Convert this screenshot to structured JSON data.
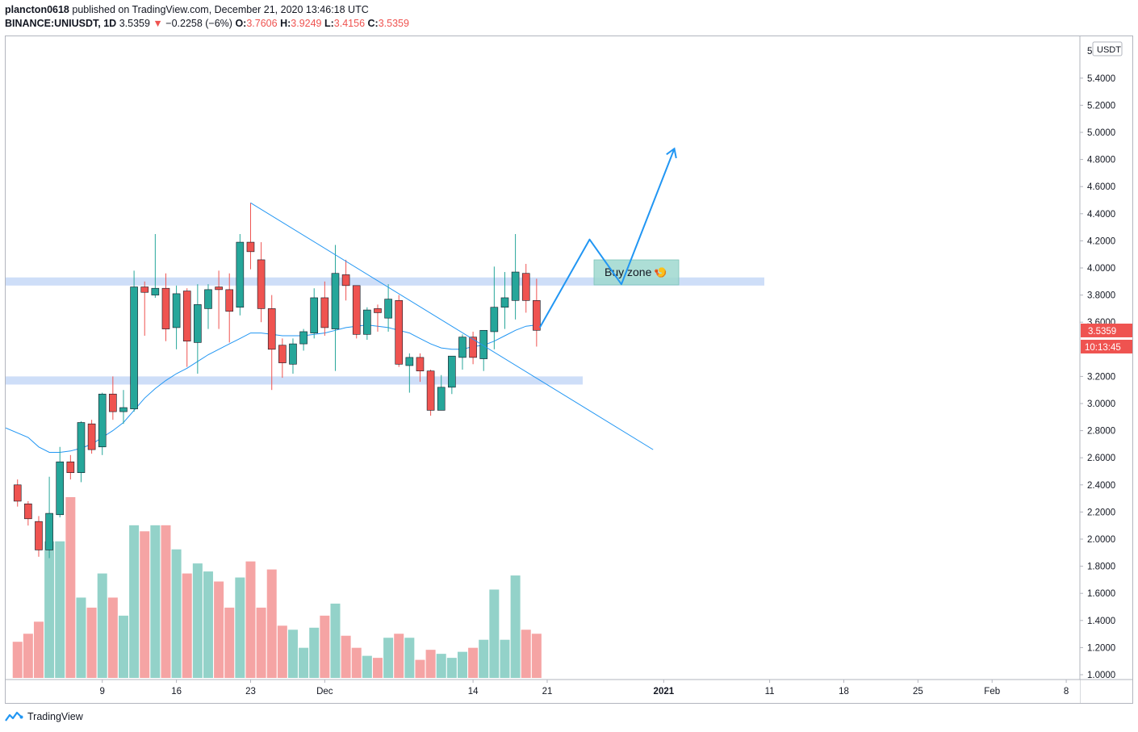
{
  "header": {
    "publisher": "plancton0618",
    "published_text": "published on TradingView.com, December 21, 2020 13:46:18 UTC",
    "symbol": "BINANCE:UNIUSDT, 1D",
    "last": "3.5359",
    "change_arrow": "▼",
    "change": "−0.2258 (−6%)",
    "o_label": "O:",
    "o_value": "3.7606",
    "h_label": "H:",
    "h_value": "3.9249",
    "l_label": "L:",
    "l_value": "3.4156",
    "c_label": "C:",
    "c_value": "3.5359"
  },
  "footer": {
    "brand": "TradingView",
    "logo_icon": "tradingview-logo-icon"
  },
  "colors": {
    "up": "#26a69a",
    "down": "#ef5350",
    "vol_up": "#93d2c9",
    "vol_down": "#f5a4a4",
    "ma": "#2196f3",
    "zone": "#c6d8f7",
    "arrow": "#2196f3",
    "price_tag": "#ef5350"
  },
  "chart_data": {
    "type": "candlestick",
    "currency": "USDT",
    "y_ticks": [
      "5.4000",
      "5.2000",
      "5.0000",
      "4.8000",
      "4.6000",
      "4.4000",
      "4.2000",
      "4.0000",
      "3.8000",
      "3.6000",
      "3.2000",
      "3.0000",
      "2.8000",
      "2.6000",
      "2.4000",
      "2.2000",
      "2.0000",
      "1.8000",
      "1.6000",
      "1.4000",
      "1.2000",
      "1.0000"
    ],
    "y_top_partial": "5",
    "ylim": [
      0.9,
      5.6
    ],
    "x_labels": [
      {
        "label": "9",
        "day": 9
      },
      {
        "label": "16",
        "day": 16
      },
      {
        "label": "23",
        "day": 23
      },
      {
        "label": "Dec",
        "day": 30
      },
      {
        "label": "14",
        "day": 44
      },
      {
        "label": "21",
        "day": 51
      },
      {
        "label": "2021",
        "day": 62,
        "bold": true
      },
      {
        "label": "11",
        "day": 72
      },
      {
        "label": "18",
        "day": 79
      },
      {
        "label": "25",
        "day": 86
      },
      {
        "label": "Feb",
        "day": 93
      },
      {
        "label": "8",
        "day": 100
      }
    ],
    "x_axis_note": "day 0 = Nov 1, 2020",
    "candles": [
      {
        "day": 1,
        "o": 2.4,
        "h": 2.44,
        "l": 2.24,
        "c": 2.28
      },
      {
        "day": 2,
        "o": 2.26,
        "h": 2.28,
        "l": 2.1,
        "c": 2.15
      },
      {
        "day": 3,
        "o": 2.13,
        "h": 2.17,
        "l": 1.87,
        "c": 1.92
      },
      {
        "day": 4,
        "o": 1.92,
        "h": 2.46,
        "l": 1.86,
        "c": 2.19
      },
      {
        "day": 5,
        "o": 2.18,
        "h": 2.68,
        "l": 2.16,
        "c": 2.57
      },
      {
        "day": 6,
        "o": 2.57,
        "h": 2.62,
        "l": 2.44,
        "c": 2.49
      },
      {
        "day": 7,
        "o": 2.49,
        "h": 2.87,
        "l": 2.42,
        "c": 2.86
      },
      {
        "day": 8,
        "o": 2.85,
        "h": 2.88,
        "l": 2.63,
        "c": 2.66
      },
      {
        "day": 9,
        "o": 2.68,
        "h": 3.08,
        "l": 2.62,
        "c": 3.07
      },
      {
        "day": 10,
        "o": 3.07,
        "h": 3.2,
        "l": 2.88,
        "c": 2.94
      },
      {
        "day": 11,
        "o": 2.94,
        "h": 3.1,
        "l": 2.85,
        "c": 2.97
      },
      {
        "day": 12,
        "o": 2.96,
        "h": 3.98,
        "l": 2.94,
        "c": 3.86
      },
      {
        "day": 13,
        "o": 3.86,
        "h": 3.9,
        "l": 3.5,
        "c": 3.82
      },
      {
        "day": 14,
        "o": 3.8,
        "h": 4.25,
        "l": 3.78,
        "c": 3.85
      },
      {
        "day": 15,
        "o": 3.85,
        "h": 3.96,
        "l": 3.46,
        "c": 3.55
      },
      {
        "day": 16,
        "o": 3.56,
        "h": 3.87,
        "l": 3.4,
        "c": 3.81
      },
      {
        "day": 17,
        "o": 3.83,
        "h": 3.85,
        "l": 3.27,
        "c": 3.46
      },
      {
        "day": 18,
        "o": 3.45,
        "h": 3.88,
        "l": 3.22,
        "c": 3.73
      },
      {
        "day": 19,
        "o": 3.7,
        "h": 3.88,
        "l": 3.55,
        "c": 3.84
      },
      {
        "day": 20,
        "o": 3.86,
        "h": 3.98,
        "l": 3.55,
        "c": 3.84
      },
      {
        "day": 21,
        "o": 3.84,
        "h": 3.96,
        "l": 3.45,
        "c": 3.68
      },
      {
        "day": 22,
        "o": 3.71,
        "h": 4.25,
        "l": 3.65,
        "c": 4.19
      },
      {
        "day": 23,
        "o": 4.19,
        "h": 4.48,
        "l": 3.99,
        "c": 4.12
      },
      {
        "day": 24,
        "o": 4.06,
        "h": 4.19,
        "l": 3.6,
        "c": 3.7
      },
      {
        "day": 25,
        "o": 3.7,
        "h": 3.8,
        "l": 3.1,
        "c": 3.4
      },
      {
        "day": 26,
        "o": 3.43,
        "h": 3.48,
        "l": 3.19,
        "c": 3.3
      },
      {
        "day": 27,
        "o": 3.29,
        "h": 3.48,
        "l": 3.22,
        "c": 3.44
      },
      {
        "day": 28,
        "o": 3.44,
        "h": 3.55,
        "l": 3.39,
        "c": 3.53
      },
      {
        "day": 29,
        "o": 3.52,
        "h": 3.85,
        "l": 3.48,
        "c": 3.78
      },
      {
        "day": 30,
        "o": 3.78,
        "h": 3.9,
        "l": 3.5,
        "c": 3.56
      },
      {
        "day": 31,
        "o": 3.55,
        "h": 4.17,
        "l": 3.24,
        "c": 3.96
      },
      {
        "day": 32,
        "o": 3.95,
        "h": 4.06,
        "l": 3.76,
        "c": 3.87
      },
      {
        "day": 33,
        "o": 3.87,
        "h": 3.87,
        "l": 3.48,
        "c": 3.51
      },
      {
        "day": 34,
        "o": 3.51,
        "h": 3.71,
        "l": 3.47,
        "c": 3.69
      },
      {
        "day": 35,
        "o": 3.7,
        "h": 3.73,
        "l": 3.53,
        "c": 3.67
      },
      {
        "day": 36,
        "o": 3.63,
        "h": 3.88,
        "l": 3.53,
        "c": 3.77
      },
      {
        "day": 37,
        "o": 3.76,
        "h": 3.8,
        "l": 3.27,
        "c": 3.29
      },
      {
        "day": 38,
        "o": 3.28,
        "h": 3.37,
        "l": 3.08,
        "c": 3.34
      },
      {
        "day": 39,
        "o": 3.34,
        "h": 3.37,
        "l": 3.16,
        "c": 3.24
      },
      {
        "day": 40,
        "o": 3.24,
        "h": 3.25,
        "l": 2.91,
        "c": 2.95
      },
      {
        "day": 41,
        "o": 2.95,
        "h": 3.21,
        "l": 2.95,
        "c": 3.12
      },
      {
        "day": 42,
        "o": 3.12,
        "h": 3.35,
        "l": 3.07,
        "c": 3.35
      },
      {
        "day": 43,
        "o": 3.34,
        "h": 3.51,
        "l": 3.25,
        "c": 3.49
      },
      {
        "day": 44,
        "o": 3.49,
        "h": 3.53,
        "l": 3.29,
        "c": 3.34
      },
      {
        "day": 45,
        "o": 3.33,
        "h": 3.51,
        "l": 3.24,
        "c": 3.54
      },
      {
        "day": 46,
        "o": 3.53,
        "h": 4.01,
        "l": 3.4,
        "c": 3.71
      },
      {
        "day": 47,
        "o": 3.71,
        "h": 3.97,
        "l": 3.55,
        "c": 3.78
      },
      {
        "day": 48,
        "o": 3.76,
        "h": 4.25,
        "l": 3.62,
        "c": 3.97
      },
      {
        "day": 49,
        "o": 3.96,
        "h": 4.03,
        "l": 3.67,
        "c": 3.76
      },
      {
        "day": 50,
        "o": 3.76,
        "h": 3.92,
        "l": 3.42,
        "c": 3.54
      }
    ],
    "volume": [
      0.18,
      0.22,
      0.28,
      0.68,
      0.68,
      0.9,
      0.4,
      0.35,
      0.52,
      0.4,
      0.31,
      0.76,
      0.73,
      0.76,
      0.76,
      0.64,
      0.52,
      0.57,
      0.53,
      0.48,
      0.35,
      0.5,
      0.58,
      0.35,
      0.54,
      0.26,
      0.24,
      0.15,
      0.25,
      0.31,
      0.37,
      0.21,
      0.15,
      0.11,
      0.1,
      0.2,
      0.22,
      0.2,
      0.09,
      0.14,
      0.12,
      0.1,
      0.13,
      0.15,
      0.19,
      0.44,
      0.19,
      0.51,
      0.24,
      0.22
    ],
    "ma_values": [
      2.82,
      2.75,
      2.68,
      2.64,
      2.64,
      2.65,
      2.67,
      2.7,
      2.75,
      2.8,
      2.86,
      2.95,
      3.04,
      3.11,
      3.17,
      3.22,
      3.26,
      3.31,
      3.36,
      3.4,
      3.44,
      3.48,
      3.52,
      3.52,
      3.51,
      3.5,
      3.5,
      3.5,
      3.51,
      3.52,
      3.54,
      3.56,
      3.57,
      3.58,
      3.57,
      3.56,
      3.54,
      3.52,
      3.48,
      3.44,
      3.41,
      3.4,
      3.4,
      3.42,
      3.43,
      3.46,
      3.5,
      3.54,
      3.57,
      3.58
    ],
    "last_price_label": "3.5359",
    "countdown_label": "10:13:45",
    "annotations": {
      "buy_zone_text": "Buy zone",
      "buy_zone_emoji": "🍤",
      "upper_zone": [
        3.87,
        3.93
      ],
      "lower_zone": [
        3.14,
        3.2
      ],
      "trendline": [
        {
          "day": 23,
          "price": 4.48
        },
        {
          "day": 61,
          "price": 2.66
        }
      ],
      "projection": [
        {
          "day": 50.3,
          "price": 3.56
        },
        {
          "day": 55,
          "price": 4.21
        },
        {
          "day": 58,
          "price": 3.88
        },
        {
          "day": 63,
          "price": 4.88
        }
      ]
    }
  }
}
